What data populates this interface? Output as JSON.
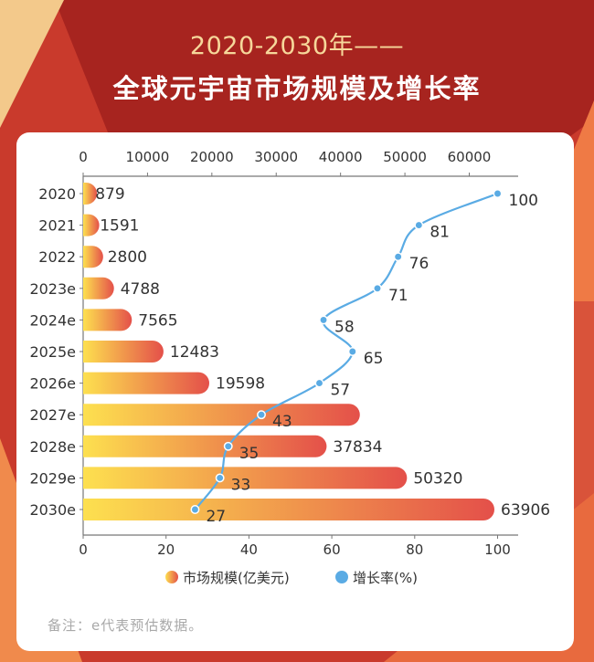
{
  "heading": {
    "line1": "2020-2030年——",
    "line2": "全球元宇宙市场规模及增长率"
  },
  "note": "备注：e代表预估数据。",
  "colors": {
    "bg_dark_red": "#a7241f",
    "bg_orange": "#e0553a",
    "bg_gold": "#f3c98b",
    "bar_start": "#fde04f",
    "bar_end": "#e4504a",
    "line": "#5aabe4",
    "heading_gold": "#f6d79a"
  },
  "chart_data": {
    "type": "bar",
    "categories": [
      "2020",
      "2021",
      "2022",
      "2023e",
      "2024e",
      "2025e",
      "2026e",
      "2027e",
      "2028e",
      "2029e",
      "2030e"
    ],
    "series": [
      {
        "name": "市场规模(亿美元)",
        "type": "bar",
        "axis": "top",
        "values": [
          879,
          1591,
          2800,
          4788,
          7565,
          12483,
          19598,
          43000,
          37834,
          50320,
          63906
        ]
      },
      {
        "name": "增长率(%)",
        "type": "line",
        "axis": "bottom",
        "values": [
          100,
          81,
          76,
          71,
          58,
          65,
          57,
          43,
          35,
          33,
          27
        ]
      }
    ],
    "bar_labels": [
      "879",
      "1591",
      "2800",
      "4788",
      "7565",
      "12483",
      "19598",
      "",
      "37834",
      "50320",
      "63906"
    ],
    "x_top": {
      "ticks": [
        "0",
        "10000",
        "20000",
        "30000",
        "40000",
        "50000",
        "60000"
      ],
      "range": [
        0,
        70000
      ]
    },
    "x_bottom": {
      "ticks": [
        "0",
        "20",
        "40",
        "60",
        "80",
        "100"
      ],
      "range": [
        0,
        105
      ]
    },
    "legend": [
      {
        "label": "市场规模(亿美元)",
        "kind": "bar"
      },
      {
        "label": "增长率(%)",
        "kind": "line"
      }
    ],
    "legend_position": "bottom",
    "grid": false
  }
}
